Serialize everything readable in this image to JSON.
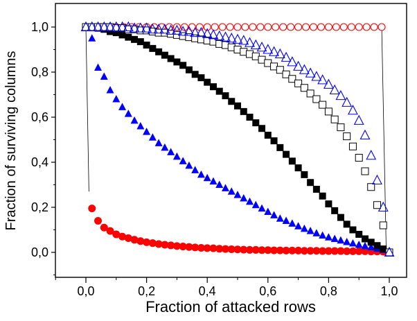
{
  "chart_data": {
    "type": "scatter",
    "xlabel": "Fraction of attacked rows",
    "ylabel": "Fraction of surviving columns",
    "xlim": [
      -0.1,
      1.05
    ],
    "ylim": [
      -0.1,
      1.1
    ],
    "xticks": [
      0.0,
      0.2,
      0.4,
      0.6,
      0.8,
      1.0
    ],
    "xtick_labels": [
      "0,0",
      "0,2",
      "0,4",
      "0,6",
      "0,8",
      "1,0"
    ],
    "yticks": [
      0.0,
      0.2,
      0.4,
      0.6,
      0.8,
      1.0
    ],
    "ytick_labels": [
      "0,0",
      "0,2",
      "0,4",
      "0,6",
      "0,8",
      "1,0"
    ],
    "grid": false,
    "legend": "none",
    "series": [
      {
        "marker": "open-circle",
        "color": "#ff0000",
        "x": [
          0.0,
          0.025,
          0.05,
          0.075,
          0.1,
          0.125,
          0.15,
          0.175,
          0.2,
          0.225,
          0.25,
          0.275,
          0.3,
          0.325,
          0.35,
          0.375,
          0.4,
          0.425,
          0.45,
          0.475,
          0.5,
          0.525,
          0.55,
          0.575,
          0.6,
          0.625,
          0.65,
          0.675,
          0.7,
          0.725,
          0.75,
          0.775,
          0.8,
          0.825,
          0.85,
          0.875,
          0.9,
          0.925,
          0.95,
          0.975
        ],
        "y": [
          1.0,
          1.0,
          1.0,
          1.0,
          1.0,
          1.0,
          1.0,
          1.0,
          1.0,
          1.0,
          1.0,
          1.0,
          1.0,
          1.0,
          1.0,
          1.0,
          1.0,
          1.0,
          1.0,
          1.0,
          1.0,
          1.0,
          1.0,
          1.0,
          1.0,
          1.0,
          1.0,
          1.0,
          1.0,
          1.0,
          1.0,
          1.0,
          1.0,
          1.0,
          1.0,
          1.0,
          1.0,
          1.0,
          1.0,
          1.0
        ],
        "line": [
          [
            0.975,
            1.0
          ],
          [
            0.99,
            0.0
          ]
        ]
      },
      {
        "marker": "filled-circle",
        "color": "#ff0000",
        "x": [
          0.0,
          0.02,
          0.04,
          0.06,
          0.08,
          0.1,
          0.12,
          0.14,
          0.16,
          0.18,
          0.2,
          0.22,
          0.24,
          0.26,
          0.28,
          0.3,
          0.32,
          0.34,
          0.36,
          0.38,
          0.4,
          0.42,
          0.44,
          0.46,
          0.48,
          0.5,
          0.52,
          0.54,
          0.56,
          0.58,
          0.6,
          0.62,
          0.64,
          0.66,
          0.68,
          0.7,
          0.72,
          0.74,
          0.76,
          0.78,
          0.8,
          0.82,
          0.84,
          0.86,
          0.88,
          0.9,
          0.92,
          0.94,
          0.96,
          0.98,
          1.0
        ],
        "y": [
          1.0,
          0.195,
          0.14,
          0.11,
          0.095,
          0.08,
          0.07,
          0.063,
          0.056,
          0.05,
          0.045,
          0.041,
          0.037,
          0.034,
          0.031,
          0.028,
          0.026,
          0.024,
          0.022,
          0.02,
          0.019,
          0.018,
          0.016,
          0.015,
          0.014,
          0.013,
          0.012,
          0.011,
          0.011,
          0.01,
          0.01,
          0.009,
          0.009,
          0.008,
          0.008,
          0.008,
          0.007,
          0.007,
          0.007,
          0.006,
          0.006,
          0.006,
          0.006,
          0.005,
          0.005,
          0.005,
          0.005,
          0.004,
          0.004,
          0.003,
          0.0
        ],
        "line": [
          [
            0.0,
            1.0
          ],
          [
            0.01,
            0.27
          ]
        ]
      },
      {
        "marker": "filled-triangle",
        "color": "#0000ff",
        "x": [
          0.0,
          0.02,
          0.04,
          0.06,
          0.08,
          0.1,
          0.12,
          0.14,
          0.16,
          0.18,
          0.2,
          0.22,
          0.24,
          0.26,
          0.28,
          0.3,
          0.32,
          0.34,
          0.36,
          0.38,
          0.4,
          0.42,
          0.44,
          0.46,
          0.48,
          0.5,
          0.52,
          0.54,
          0.56,
          0.58,
          0.6,
          0.62,
          0.64,
          0.66,
          0.68,
          0.7,
          0.72,
          0.74,
          0.76,
          0.78,
          0.8,
          0.82,
          0.84,
          0.86,
          0.88,
          0.9,
          0.92,
          0.94,
          0.96,
          0.98,
          1.0
        ],
        "y": [
          1.0,
          0.95,
          0.82,
          0.78,
          0.72,
          0.68,
          0.645,
          0.615,
          0.585,
          0.56,
          0.535,
          0.51,
          0.485,
          0.465,
          0.445,
          0.425,
          0.405,
          0.385,
          0.365,
          0.345,
          0.33,
          0.315,
          0.3,
          0.285,
          0.27,
          0.255,
          0.24,
          0.225,
          0.21,
          0.195,
          0.18,
          0.165,
          0.15,
          0.14,
          0.128,
          0.116,
          0.105,
          0.095,
          0.085,
          0.075,
          0.067,
          0.06,
          0.053,
          0.046,
          0.04,
          0.034,
          0.028,
          0.023,
          0.017,
          0.011,
          0.0
        ]
      },
      {
        "marker": "filled-square",
        "color": "#000000",
        "x": [
          0.0,
          0.02,
          0.04,
          0.06,
          0.08,
          0.1,
          0.12,
          0.14,
          0.16,
          0.18,
          0.2,
          0.22,
          0.24,
          0.26,
          0.28,
          0.3,
          0.32,
          0.34,
          0.36,
          0.38,
          0.4,
          0.42,
          0.44,
          0.46,
          0.48,
          0.5,
          0.52,
          0.54,
          0.56,
          0.58,
          0.6,
          0.62,
          0.64,
          0.66,
          0.68,
          0.7,
          0.72,
          0.74,
          0.76,
          0.78,
          0.8,
          0.82,
          0.84,
          0.86,
          0.88,
          0.9,
          0.92,
          0.94,
          0.96,
          0.98,
          1.0
        ],
        "y": [
          1.0,
          1.0,
          0.995,
          0.99,
          0.98,
          0.975,
          0.965,
          0.955,
          0.945,
          0.935,
          0.92,
          0.905,
          0.89,
          0.875,
          0.86,
          0.845,
          0.83,
          0.81,
          0.79,
          0.775,
          0.755,
          0.735,
          0.715,
          0.695,
          0.67,
          0.65,
          0.625,
          0.6,
          0.575,
          0.55,
          0.52,
          0.495,
          0.465,
          0.435,
          0.405,
          0.375,
          0.345,
          0.31,
          0.28,
          0.25,
          0.215,
          0.185,
          0.155,
          0.125,
          0.1,
          0.08,
          0.06,
          0.045,
          0.03,
          0.015,
          0.0
        ]
      },
      {
        "marker": "open-square",
        "color": "#000000",
        "x": [
          0.0,
          0.02,
          0.04,
          0.06,
          0.08,
          0.1,
          0.12,
          0.14,
          0.16,
          0.18,
          0.2,
          0.22,
          0.24,
          0.26,
          0.28,
          0.3,
          0.32,
          0.34,
          0.36,
          0.38,
          0.4,
          0.42,
          0.44,
          0.46,
          0.48,
          0.5,
          0.52,
          0.54,
          0.56,
          0.58,
          0.6,
          0.62,
          0.64,
          0.66,
          0.68,
          0.7,
          0.72,
          0.74,
          0.76,
          0.78,
          0.8,
          0.82,
          0.84,
          0.86,
          0.88,
          0.9,
          0.92,
          0.94,
          0.96,
          0.98,
          1.0
        ],
        "y": [
          1.0,
          1.0,
          1.0,
          1.0,
          1.0,
          0.995,
          0.995,
          0.99,
          0.99,
          0.985,
          0.985,
          0.98,
          0.975,
          0.975,
          0.97,
          0.965,
          0.96,
          0.955,
          0.95,
          0.945,
          0.94,
          0.935,
          0.925,
          0.92,
          0.91,
          0.9,
          0.89,
          0.88,
          0.87,
          0.855,
          0.84,
          0.825,
          0.81,
          0.79,
          0.77,
          0.75,
          0.73,
          0.705,
          0.68,
          0.655,
          0.625,
          0.59,
          0.555,
          0.515,
          0.47,
          0.42,
          0.36,
          0.29,
          0.21,
          0.12,
          0.0
        ]
      },
      {
        "marker": "open-triangle",
        "color": "#0000ff",
        "x": [
          0.0,
          0.02,
          0.04,
          0.06,
          0.08,
          0.1,
          0.12,
          0.14,
          0.16,
          0.18,
          0.2,
          0.22,
          0.24,
          0.26,
          0.28,
          0.3,
          0.32,
          0.34,
          0.36,
          0.38,
          0.4,
          0.42,
          0.44,
          0.46,
          0.48,
          0.5,
          0.52,
          0.54,
          0.56,
          0.58,
          0.6,
          0.62,
          0.64,
          0.66,
          0.68,
          0.7,
          0.72,
          0.74,
          0.76,
          0.78,
          0.8,
          0.82,
          0.84,
          0.86,
          0.88,
          0.9,
          0.92,
          0.94,
          0.96,
          0.98,
          1.0
        ],
        "y": [
          1.0,
          1.0,
          1.0,
          1.0,
          1.0,
          1.0,
          1.0,
          1.0,
          0.995,
          0.995,
          0.995,
          0.99,
          0.99,
          0.99,
          0.985,
          0.985,
          0.98,
          0.98,
          0.975,
          0.975,
          0.97,
          0.965,
          0.96,
          0.955,
          0.95,
          0.945,
          0.94,
          0.93,
          0.92,
          0.91,
          0.9,
          0.89,
          0.88,
          0.865,
          0.845,
          0.825,
          0.81,
          0.795,
          0.78,
          0.765,
          0.745,
          0.72,
          0.695,
          0.665,
          0.63,
          0.585,
          0.52,
          0.43,
          0.32,
          0.2,
          0.0
        ]
      }
    ]
  }
}
